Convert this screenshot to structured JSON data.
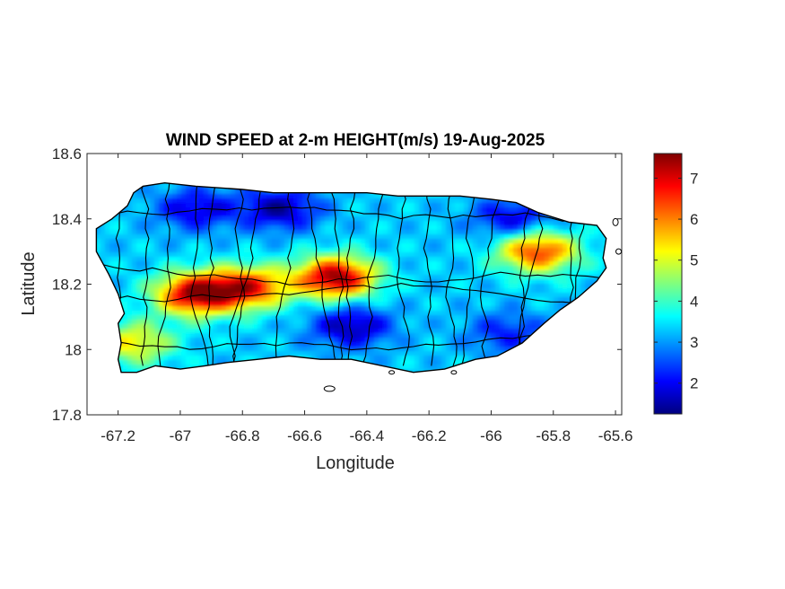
{
  "chart_data": {
    "type": "heatmap",
    "title": "WIND SPEED at 2-m HEIGHT(m/s) 19-Aug-2025",
    "xlabel": "Longitude",
    "ylabel": "Latitude",
    "xlim": [
      -67.3,
      -65.58
    ],
    "ylim": [
      17.8,
      18.6
    ],
    "x_ticks": [
      -67.2,
      -67,
      -66.8,
      -66.6,
      -66.4,
      -66.2,
      -66,
      -65.8,
      -65.6
    ],
    "x_tick_labels": [
      "-67.2",
      "-67",
      "-66.8",
      "-66.6",
      "-66.4",
      "-66.2",
      "-66",
      "-65.8",
      "-65.6"
    ],
    "y_ticks": [
      17.8,
      18,
      18.2,
      18.4,
      18.6
    ],
    "y_tick_labels": [
      "17.8",
      "18",
      "18.2",
      "18.4",
      "18.6"
    ],
    "colorbar": {
      "colormap": "jet",
      "range": [
        1.25,
        7.6
      ],
      "ticks": [
        2,
        3,
        4,
        5,
        6,
        7
      ],
      "tick_labels": [
        "2",
        "3",
        "4",
        "5",
        "6",
        "7"
      ],
      "colors": [
        "#00007f",
        "#0000ff",
        "#007fff",
        "#00ffff",
        "#7fff7f",
        "#ffff00",
        "#ff7f00",
        "#ff0000",
        "#7f0000"
      ]
    },
    "features": [
      {
        "name": "high-wind band west",
        "lon": -66.95,
        "lat": 18.17,
        "value": 7.4
      },
      {
        "name": "high-wind band central",
        "lon": -66.5,
        "lat": 18.22,
        "value": 7.5
      },
      {
        "name": "high-wind band central-west",
        "lon": -66.78,
        "lat": 18.19,
        "value": 6.6
      },
      {
        "name": "high-wind band east",
        "lon": -65.85,
        "lat": 18.3,
        "value": 6.5
      },
      {
        "name": "north coast low",
        "lon": -66.68,
        "lat": 18.43,
        "value": 1.5
      },
      {
        "name": "north-west low",
        "lon": -66.95,
        "lat": 18.43,
        "value": 1.8
      },
      {
        "name": "south-central low",
        "lon": -66.45,
        "lat": 18.07,
        "value": 1.5
      },
      {
        "name": "north-east low",
        "lon": -65.93,
        "lat": 18.4,
        "value": 1.8
      },
      {
        "name": "south-east low",
        "lon": -65.95,
        "lat": 18.05,
        "value": 2.2
      },
      {
        "name": "south-west coast high",
        "lon": -67.15,
        "lat": 18.02,
        "value": 5.3
      }
    ]
  }
}
